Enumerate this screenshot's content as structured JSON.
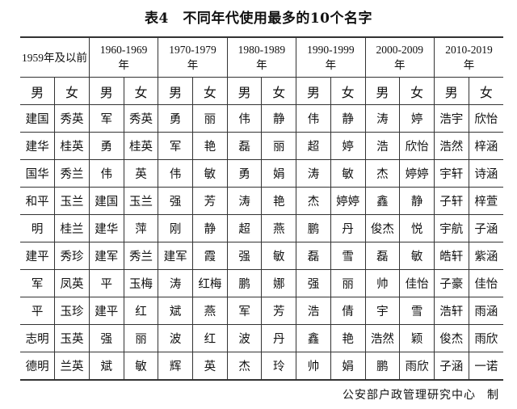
{
  "title": "表4　不同年代使用最多的10个名字",
  "periods": [
    "1959年及以前",
    "1960-1969年",
    "1970-1979年",
    "1980-1989年",
    "1990-1999年",
    "2000-2009年",
    "2010-2019年"
  ],
  "gender_labels": {
    "male": "男",
    "female": "女"
  },
  "rows": [
    [
      "建国",
      "秀英",
      "军",
      "秀英",
      "勇",
      "丽",
      "伟",
      "静",
      "伟",
      "静",
      "涛",
      "婷",
      "浩宇",
      "欣怡"
    ],
    [
      "建华",
      "桂英",
      "勇",
      "桂英",
      "军",
      "艳",
      "磊",
      "丽",
      "超",
      "婷",
      "浩",
      "欣怡",
      "浩然",
      "梓涵"
    ],
    [
      "国华",
      "秀兰",
      "伟",
      "英",
      "伟",
      "敏",
      "勇",
      "娟",
      "涛",
      "敏",
      "杰",
      "婷婷",
      "宇轩",
      "诗涵"
    ],
    [
      "和平",
      "玉兰",
      "建国",
      "玉兰",
      "强",
      "芳",
      "涛",
      "艳",
      "杰",
      "婷婷",
      "鑫",
      "静",
      "子轩",
      "梓萱"
    ],
    [
      "明",
      "桂兰",
      "建华",
      "萍",
      "刚",
      "静",
      "超",
      "燕",
      "鹏",
      "丹",
      "俊杰",
      "悦",
      "宇航",
      "子涵"
    ],
    [
      "建平",
      "秀珍",
      "建军",
      "秀兰",
      "建军",
      "霞",
      "强",
      "敏",
      "磊",
      "雪",
      "磊",
      "敏",
      "皓轩",
      "紫涵"
    ],
    [
      "军",
      "凤英",
      "平",
      "玉梅",
      "涛",
      "红梅",
      "鹏",
      "娜",
      "强",
      "丽",
      "帅",
      "佳怡",
      "子豪",
      "佳怡"
    ],
    [
      "平",
      "玉珍",
      "建平",
      "红",
      "斌",
      "燕",
      "军",
      "芳",
      "浩",
      "倩",
      "宇",
      "雪",
      "浩轩",
      "雨涵"
    ],
    [
      "志明",
      "玉英",
      "强",
      "丽",
      "波",
      "红",
      "波",
      "丹",
      "鑫",
      "艳",
      "浩然",
      "颖",
      "俊杰",
      "雨欣"
    ],
    [
      "德明",
      "兰英",
      "斌",
      "敏",
      "辉",
      "英",
      "杰",
      "玲",
      "帅",
      "娟",
      "鹏",
      "雨欣",
      "子涵",
      "一诺"
    ]
  ],
  "credit": {
    "org": "公安部户政管理研究中心",
    "suffix": "制"
  }
}
